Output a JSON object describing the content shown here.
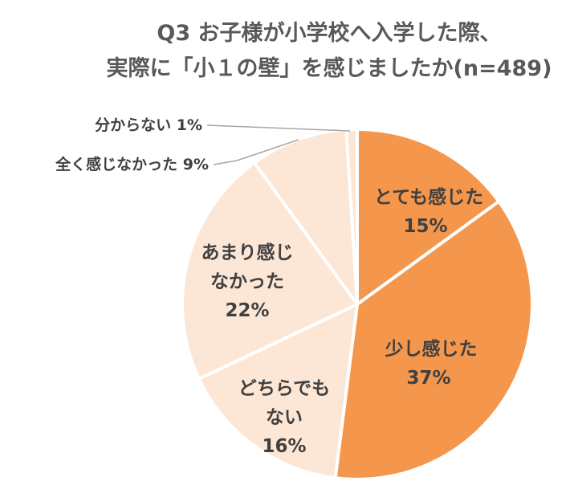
{
  "chart_data": {
    "type": "pie",
    "title": "Q3 お子様が小学校へ入学した際、",
    "subtitle": "実際に「小１の壁」を感じましたか(n=489)",
    "slices": [
      {
        "label_lines": [
          "とても感じた"
        ],
        "value_label": "15%",
        "value": 15,
        "color": "#F4964B"
      },
      {
        "label_lines": [
          "少し感じた"
        ],
        "value_label": "37%",
        "value": 37,
        "color": "#F4964B"
      },
      {
        "label_lines": [
          "どちらでも",
          "ない"
        ],
        "value_label": "16%",
        "value": 16,
        "color": "#FCE6D6"
      },
      {
        "label_lines": [
          "あまり感じ",
          "なかった"
        ],
        "value_label": "22%",
        "value": 22,
        "color": "#FCE6D6"
      },
      {
        "label_lines": [
          "全く感じなかった 9%"
        ],
        "value_label": "",
        "value": 9,
        "color": "#FCE6D6"
      },
      {
        "label_lines": [
          "分からない 1%"
        ],
        "value_label": "",
        "value": 1,
        "color": "#FCE6D6"
      }
    ]
  }
}
